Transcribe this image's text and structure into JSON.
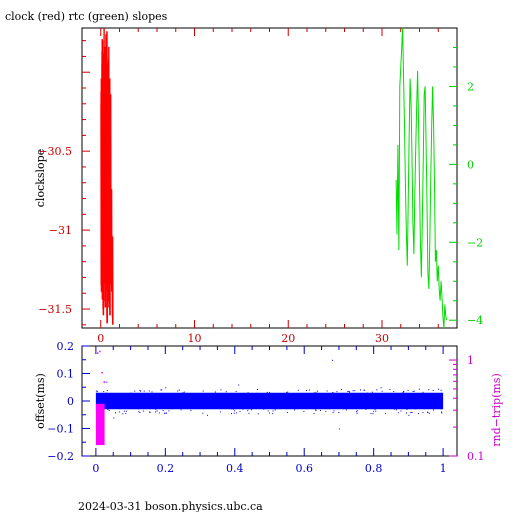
{
  "title": "clock (red) rtc (green) slopes",
  "footer": "2024-03-31 boson.physics.ubc.ca",
  "chart_data": [
    {
      "type": "line",
      "panel": "top",
      "ylabel_left": "clockslope",
      "ylabel_right": "",
      "x_range": [
        -2,
        38
      ],
      "x_ticks": [
        "0",
        "10",
        "20",
        "30"
      ],
      "x_tick_values": [
        0,
        10,
        20,
        30
      ],
      "y_left_range": [
        -31.62,
        -29.72
      ],
      "y_left_ticks": [
        "−30.5",
        "−31",
        "−31.5"
      ],
      "y_left_tick_values": [
        -30.5,
        -31,
        -31.5
      ],
      "y_right_range": [
        -4.2,
        3.5
      ],
      "y_right_ticks": [
        "2",
        "0",
        "−2",
        "−4"
      ],
      "y_right_tick_values": [
        2,
        0,
        -2,
        -4
      ],
      "colors": {
        "clock": "#ff0000",
        "rtc": "#00dd00",
        "axis_left": "#cc0000",
        "axis_right": "#00cc00"
      },
      "series": [
        {
          "name": "clock",
          "axis": "left",
          "x": [
            0.0,
            0.1,
            0.2,
            0.3,
            0.4,
            0.5,
            0.6,
            0.7,
            0.8,
            0.9,
            1.0,
            1.1,
            1.2
          ],
          "y_max": [
            -30.2,
            -29.95,
            -30.05,
            -29.88,
            -30.0,
            -29.92,
            -29.9,
            -30.1,
            -30.0,
            -30.2,
            -30.3,
            -30.9,
            -31.2
          ],
          "y_min": [
            -31.35,
            -31.4,
            -31.5,
            -31.3,
            -31.45,
            -31.35,
            -31.55,
            -31.3,
            -31.45,
            -31.5,
            -31.3,
            -31.35,
            -31.56
          ]
        },
        {
          "name": "rtc",
          "axis": "right",
          "x": [
            31.5,
            31.6,
            31.7,
            31.8,
            31.9,
            32.0,
            32.1,
            32.2,
            32.3,
            32.4,
            32.5,
            32.6,
            32.7,
            32.8,
            32.9,
            33.0,
            33.1,
            33.2,
            33.3,
            33.4,
            33.5,
            33.6,
            33.7,
            33.8,
            33.9,
            34.0,
            34.1,
            34.2,
            34.3,
            34.4,
            34.5,
            34.6,
            34.7,
            34.8,
            34.9,
            35.0,
            35.1,
            35.2,
            35.3,
            35.4,
            35.5,
            35.6,
            35.7,
            35.8,
            35.9,
            36.0,
            36.1,
            36.2,
            36.3,
            36.4,
            36.5,
            36.6,
            36.7,
            36.8,
            36.9
          ],
          "y": [
            -0.4,
            -1.8,
            0.5,
            -2.2,
            2.0,
            2.5,
            3.0,
            3.5,
            2.2,
            1.0,
            -0.5,
            -1.8,
            -2.6,
            -1.0,
            0.8,
            2.2,
            1.5,
            0.2,
            -1.5,
            -2.3,
            -0.8,
            0.5,
            1.5,
            2.4,
            1.0,
            -0.5,
            -2.0,
            -2.9,
            -1.5,
            0.0,
            1.8,
            2.0,
            0.5,
            -1.0,
            -2.8,
            -3.2,
            -2.0,
            -0.3,
            1.0,
            2.0,
            1.0,
            -0.5,
            -2.5,
            -2.2,
            -3.0,
            -2.6,
            -3.2,
            -3.5,
            -3.0,
            -3.4,
            -3.9,
            -4.2,
            -3.6,
            -3.9,
            -4.0
          ]
        }
      ]
    },
    {
      "type": "scatter",
      "panel": "bottom",
      "ylabel_left": "offset(ms)",
      "ylabel_right": "rnd−trip(ms)",
      "x_range": [
        -0.04,
        1.04
      ],
      "x_ticks": [
        "0",
        "0.2",
        "0.4",
        "0.6",
        "0.8",
        "1"
      ],
      "x_tick_values": [
        0,
        0.2,
        0.4,
        0.6,
        0.8,
        1
      ],
      "y_left_range": [
        -0.2,
        0.2
      ],
      "y_left_ticks": [
        "0.2",
        "0.1",
        "0",
        "−0.1",
        "−0.2"
      ],
      "y_left_tick_values": [
        0.2,
        0.1,
        0,
        -0.1,
        -0.2
      ],
      "y_right_log": true,
      "y_right_range": [
        0.1,
        1.4
      ],
      "y_right_ticks": [
        "1",
        "0.1"
      ],
      "y_right_tick_values": [
        1,
        0.1
      ],
      "colors": {
        "offset": "#0000ff",
        "rtt": "#ff00ff",
        "axis_left": "#0000cc",
        "axis_right": "#cc00cc"
      },
      "series": [
        {
          "name": "offset",
          "axis": "left",
          "x_range": [
            0,
            1
          ],
          "band": [
            -0.03,
            0.03
          ],
          "outliers_x": [
            0.03,
            0.05,
            0.2,
            0.32,
            0.41,
            0.55,
            0.68,
            0.7,
            0.82,
            0.9,
            0.97
          ],
          "outliers_y": [
            0.07,
            -0.06,
            0.05,
            -0.05,
            0.06,
            -0.04,
            0.15,
            -0.1,
            0.05,
            -0.05,
            0.04
          ]
        },
        {
          "name": "rtt",
          "axis": "right",
          "x_range": [
            0,
            0.025
          ],
          "y_range": [
            0.13,
            0.35
          ],
          "outliers_y": [
            1.2,
            1.25,
            0.75,
            0.6
          ]
        }
      ]
    }
  ]
}
